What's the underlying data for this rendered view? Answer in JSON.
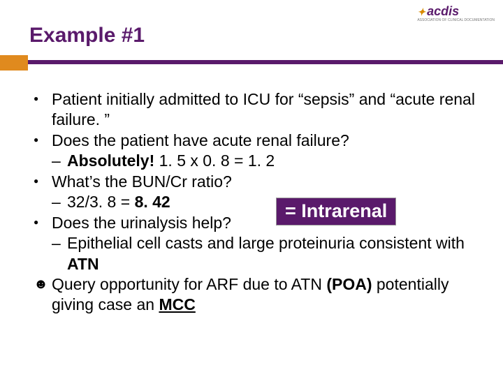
{
  "logo": {
    "text": "acdis",
    "subtitle": "ASSOCIATION OF CLINICAL DOCUMENTATION"
  },
  "title": "Example #1",
  "bullets": {
    "b1": "Patient initially admitted to ICU for “sepsis” and “acute renal failure. ”",
    "b2": "Does the patient have acute renal failure?",
    "b2s_lead": "Absolutely!",
    "b2s_rest": " 1. 5 x 0. 8 = 1. 2",
    "b3": "What’s the BUN/Cr ratio?",
    "b3s_pre": "32/3. 8 = ",
    "b3s_bold": "8. 42",
    "b4": "Does the urinalysis help?",
    "b4s_pre": "Epithelial cell casts and large proteinuria consistent with ",
    "b4s_bold": "ATN",
    "b5_pre": "Query opportunity for ARF due to ATN ",
    "b5_bold1": "(POA)",
    "b5_mid": " potentially giving case an ",
    "b5_bold2": "MCC"
  },
  "callout": "= Intrarenal",
  "colors": {
    "brand": "#5a1a6b",
    "accent": "#e08a1e",
    "text": "#000000",
    "bg": "#ffffff"
  }
}
